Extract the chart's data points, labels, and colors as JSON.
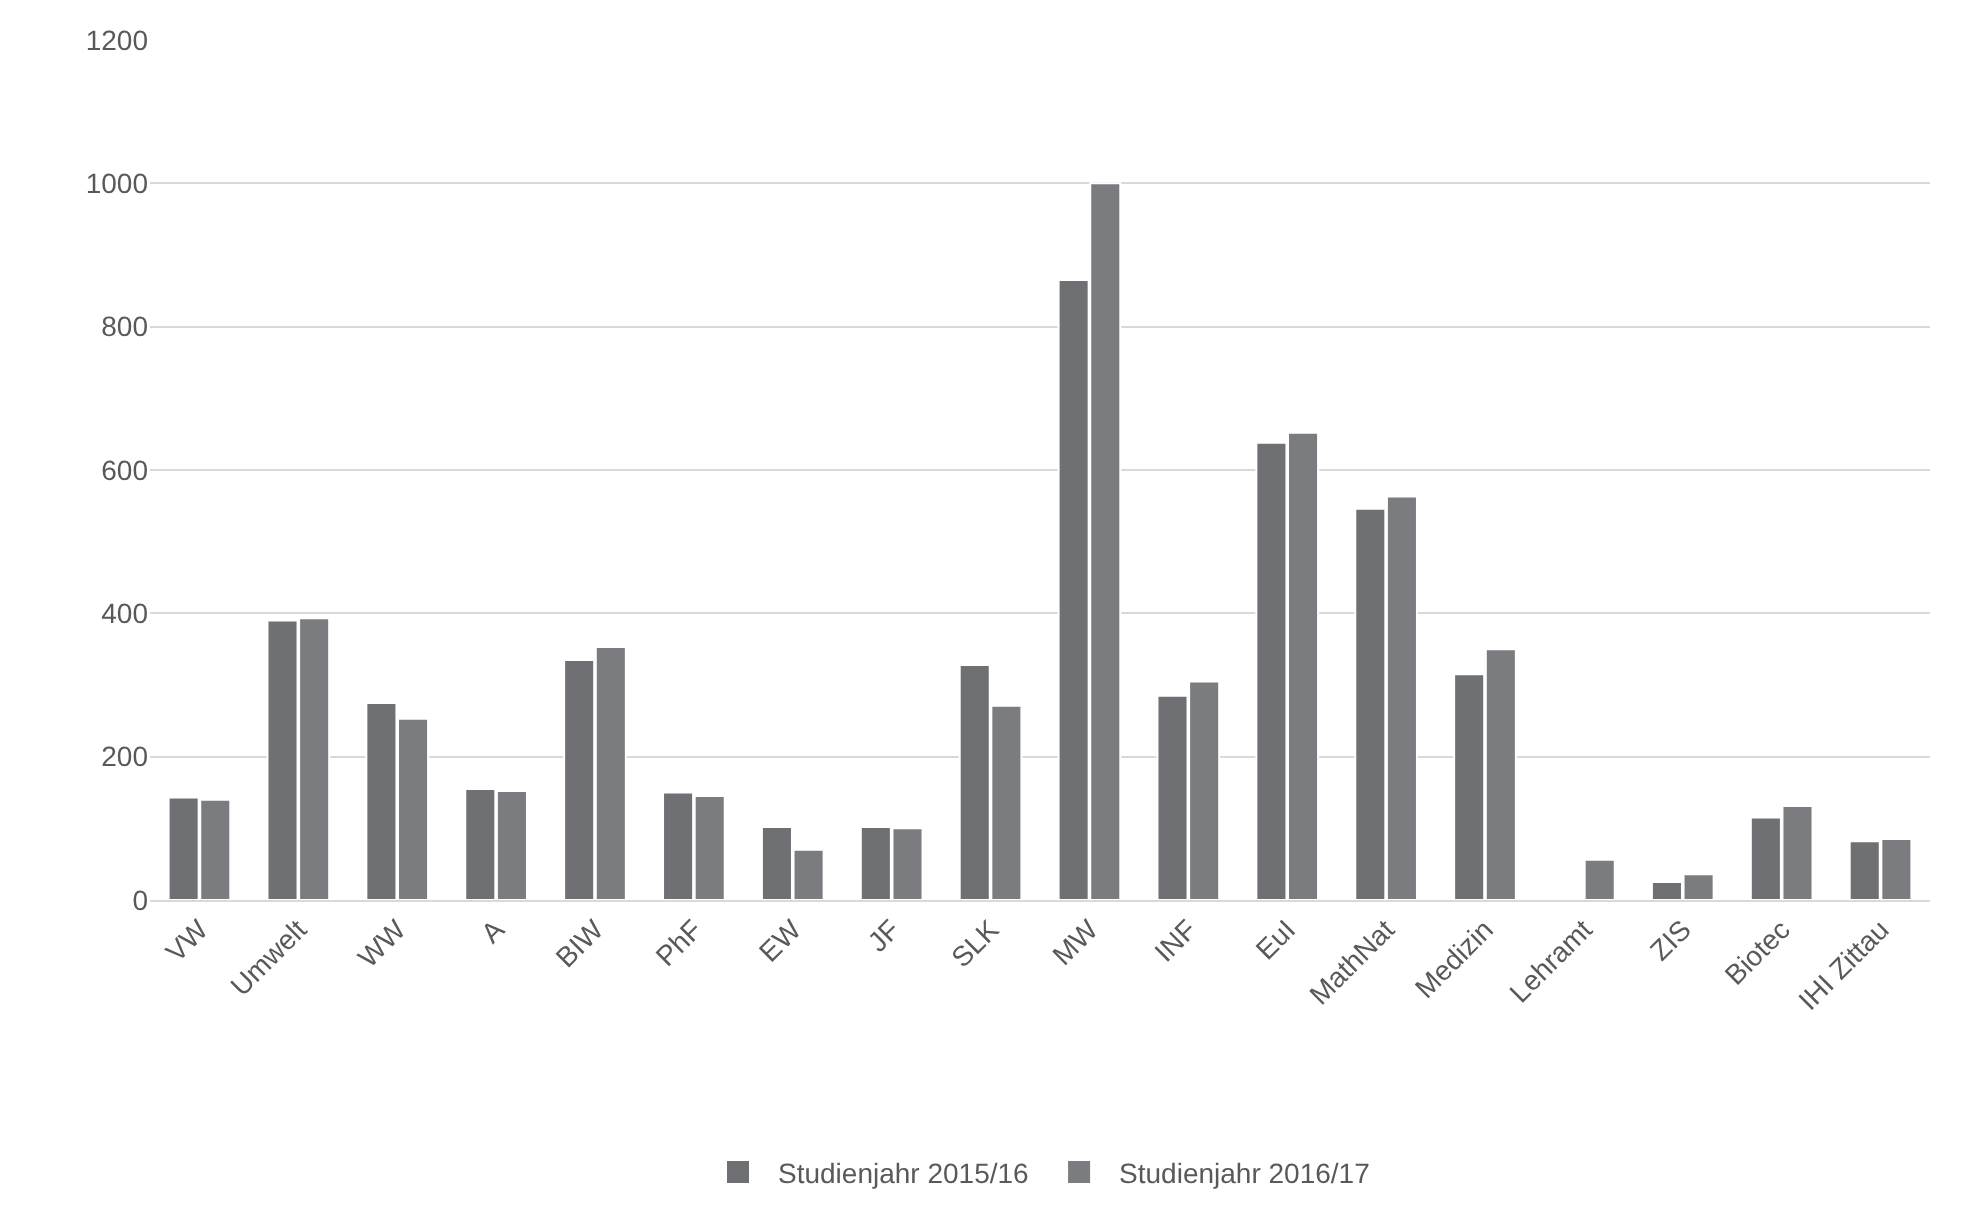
{
  "chart_data": {
    "type": "bar",
    "categories": [
      "VW",
      "Umwelt",
      "WW",
      "A",
      "BIW",
      "PhF",
      "EW",
      "JF",
      "SLK",
      "MW",
      "INF",
      "EuI",
      "MathNat",
      "Medizin",
      "Lehramt",
      "ZIS",
      "Biotec",
      "IHI Zittau"
    ],
    "series": [
      {
        "name": "Studienjahr 2015/16",
        "color": "#6f7073",
        "values": [
          143,
          390,
          275,
          155,
          335,
          150,
          102,
          102,
          328,
          865,
          285,
          638,
          546,
          315,
          null,
          25,
          115,
          82
        ]
      },
      {
        "name": "Studienjahr 2016/17",
        "color": "#7b7c80",
        "values": [
          140,
          393,
          253,
          152,
          353,
          145,
          70,
          100,
          271,
          1000,
          305,
          652,
          563,
          350,
          56,
          36,
          131,
          85
        ]
      }
    ],
    "ylim": [
      0,
      1200
    ],
    "yticks": [
      0,
      200,
      400,
      600,
      800,
      1000,
      1200
    ],
    "grid": "y",
    "legend": "bottom"
  }
}
